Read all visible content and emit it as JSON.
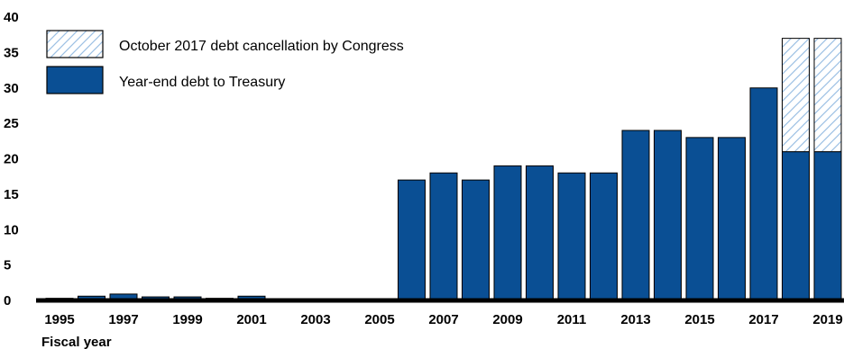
{
  "chart_data": {
    "type": "bar",
    "stacked": true,
    "xlabel": "Fiscal year",
    "ylabel": "",
    "ylim": [
      0,
      40
    ],
    "yticks": [
      0,
      5,
      10,
      15,
      20,
      25,
      30,
      35,
      40
    ],
    "categories": [
      "1995",
      "1996",
      "1997",
      "1998",
      "1999",
      "2000",
      "2001",
      "2002",
      "2003",
      "2004",
      "2005",
      "2006",
      "2007",
      "2008",
      "2009",
      "2010",
      "2011",
      "2012",
      "2013",
      "2014",
      "2015",
      "2016",
      "2017",
      "2018",
      "2019"
    ],
    "xtick_labels": [
      "1995",
      "1997",
      "1999",
      "2001",
      "2003",
      "2005",
      "2007",
      "2009",
      "2011",
      "2013",
      "2015",
      "2017",
      "2019"
    ],
    "series": [
      {
        "name": "Year-end debt to Treasury",
        "color": "#0a4f94",
        "values": [
          0.3,
          0.6,
          0.9,
          0.5,
          0.5,
          0.3,
          0.6,
          0,
          0,
          0,
          0.2,
          17,
          18,
          17,
          19,
          19,
          18,
          18,
          24,
          24,
          23,
          23,
          30,
          21,
          21
        ]
      },
      {
        "name": "October 2017 debt cancellation by Congress",
        "color": "#a8c8e8",
        "pattern": "diagonal-hatch",
        "values": [
          0,
          0,
          0,
          0,
          0,
          0,
          0,
          0,
          0,
          0,
          0,
          0,
          0,
          0,
          0,
          0,
          0,
          0,
          0,
          0,
          0,
          0,
          0,
          16,
          16
        ]
      }
    ],
    "legend_placement": "top-left",
    "legend": [
      {
        "label": "October 2017 debt cancellation by Congress",
        "style": "hatched"
      },
      {
        "label": "Year-end debt to Treasury",
        "style": "solid"
      }
    ],
    "grid": false
  }
}
